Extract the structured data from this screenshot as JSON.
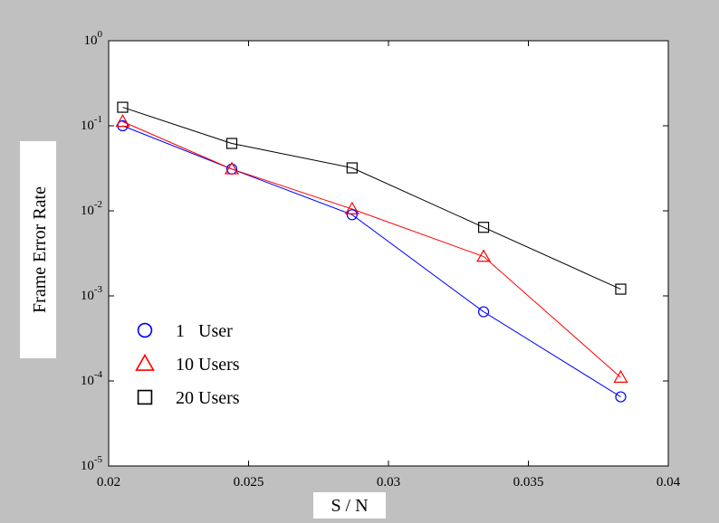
{
  "chart_data": {
    "type": "line",
    "xlabel": "S / N",
    "ylabel": "Frame Error Rate",
    "xlim": [
      0.02,
      0.04
    ],
    "ylim": [
      1e-05,
      1
    ],
    "yscale": "log",
    "grid": false,
    "legend_position": "bottom-left",
    "x_ticks": [
      {
        "value": 0.02,
        "label": "0.02"
      },
      {
        "value": 0.025,
        "label": "0.025"
      },
      {
        "value": 0.03,
        "label": "0.03"
      },
      {
        "value": 0.035,
        "label": "0.035"
      },
      {
        "value": 0.04,
        "label": "0.04"
      }
    ],
    "y_ticks": [
      {
        "value": 1,
        "base": "10",
        "exp": "0"
      },
      {
        "value": 0.1,
        "base": "10",
        "exp": "-1"
      },
      {
        "value": 0.01,
        "base": "10",
        "exp": "-2"
      },
      {
        "value": 0.001,
        "base": "10",
        "exp": "-3"
      },
      {
        "value": 0.0001,
        "base": "10",
        "exp": "-4"
      },
      {
        "value": 1e-05,
        "base": "10",
        "exp": "-5"
      }
    ],
    "x": [
      0.0205,
      0.0244,
      0.0287,
      0.0334,
      0.0383
    ],
    "series": [
      {
        "name": "1   User",
        "marker": "circle",
        "color": "#0000ff",
        "values": [
          0.1,
          0.031,
          0.009,
          0.00065,
          6.5e-05
        ]
      },
      {
        "name": "10 Users",
        "marker": "triangle",
        "color": "#ff0000",
        "values": [
          0.112,
          0.031,
          0.0105,
          0.0029,
          0.00011
        ]
      },
      {
        "name": "20 Users",
        "marker": "square",
        "color": "#000000",
        "values": [
          0.165,
          0.062,
          0.032,
          0.0064,
          0.0012
        ]
      }
    ]
  }
}
